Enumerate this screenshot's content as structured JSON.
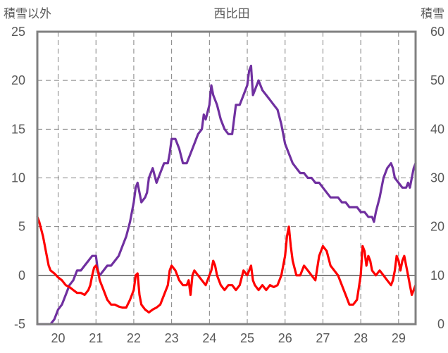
{
  "chart_data": {
    "type": "line",
    "title": "西比田",
    "left_axis_label": "積雪以外",
    "right_axis_label": "積雪",
    "x_range": [
      19.45,
      29.45
    ],
    "x_ticks": [
      20,
      21,
      22,
      23,
      24,
      25,
      26,
      27,
      28,
      29
    ],
    "left_ylim": [
      -5,
      25
    ],
    "left_ticks": [
      -5,
      0,
      5,
      10,
      15,
      20,
      25
    ],
    "right_ylim": [
      0,
      60
    ],
    "right_ticks": [
      0,
      10,
      20,
      30,
      40,
      50,
      60
    ],
    "grid": true,
    "colors": {
      "snow_depth": "#7030a0",
      "temperature": "#ff0000",
      "frame": "#808080",
      "zero_line": "#595959"
    },
    "series": [
      {
        "axis": "right",
        "color": "#7030a0",
        "points": [
          [
            19.45,
            0
          ],
          [
            19.8,
            0
          ],
          [
            19.9,
            1
          ],
          [
            20.0,
            3
          ],
          [
            20.1,
            4
          ],
          [
            20.2,
            6
          ],
          [
            20.3,
            8
          ],
          [
            20.4,
            9
          ],
          [
            20.5,
            11
          ],
          [
            20.6,
            11
          ],
          [
            20.7,
            12
          ],
          [
            20.8,
            13
          ],
          [
            20.9,
            14
          ],
          [
            21.0,
            14
          ],
          [
            21.05,
            11
          ],
          [
            21.1,
            10
          ],
          [
            21.2,
            11
          ],
          [
            21.3,
            12
          ],
          [
            21.4,
            12
          ],
          [
            21.5,
            13
          ],
          [
            21.6,
            14
          ],
          [
            21.7,
            16
          ],
          [
            21.8,
            18
          ],
          [
            21.9,
            21
          ],
          [
            22.0,
            25
          ],
          [
            22.05,
            28
          ],
          [
            22.1,
            29
          ],
          [
            22.15,
            27
          ],
          [
            22.2,
            25
          ],
          [
            22.3,
            26
          ],
          [
            22.35,
            27
          ],
          [
            22.4,
            30
          ],
          [
            22.5,
            32
          ],
          [
            22.6,
            29
          ],
          [
            22.7,
            31
          ],
          [
            22.8,
            33
          ],
          [
            22.9,
            33
          ],
          [
            22.95,
            35
          ],
          [
            23.0,
            38
          ],
          [
            23.1,
            38
          ],
          [
            23.2,
            36
          ],
          [
            23.3,
            33
          ],
          [
            23.4,
            33
          ],
          [
            23.5,
            35
          ],
          [
            23.6,
            37
          ],
          [
            23.7,
            39
          ],
          [
            23.8,
            40
          ],
          [
            23.85,
            43
          ],
          [
            23.9,
            42
          ],
          [
            24.0,
            45
          ],
          [
            24.05,
            49
          ],
          [
            24.1,
            47
          ],
          [
            24.2,
            45
          ],
          [
            24.3,
            42
          ],
          [
            24.4,
            40
          ],
          [
            24.5,
            39
          ],
          [
            24.6,
            39
          ],
          [
            24.7,
            45
          ],
          [
            24.8,
            45
          ],
          [
            24.9,
            47
          ],
          [
            25.0,
            49
          ],
          [
            25.05,
            52
          ],
          [
            25.1,
            53
          ],
          [
            25.15,
            47
          ],
          [
            25.2,
            48
          ],
          [
            25.3,
            50
          ],
          [
            25.4,
            48
          ],
          [
            25.5,
            47
          ],
          [
            25.6,
            46
          ],
          [
            25.7,
            45
          ],
          [
            25.8,
            44
          ],
          [
            25.9,
            41
          ],
          [
            26.0,
            37
          ],
          [
            26.1,
            35
          ],
          [
            26.2,
            33
          ],
          [
            26.3,
            32
          ],
          [
            26.4,
            31
          ],
          [
            26.5,
            31
          ],
          [
            26.6,
            30
          ],
          [
            26.7,
            30
          ],
          [
            26.8,
            29
          ],
          [
            26.9,
            29
          ],
          [
            27.0,
            28
          ],
          [
            27.1,
            27
          ],
          [
            27.2,
            26
          ],
          [
            27.3,
            26
          ],
          [
            27.4,
            26
          ],
          [
            27.5,
            25
          ],
          [
            27.6,
            25
          ],
          [
            27.7,
            24
          ],
          [
            27.8,
            24
          ],
          [
            27.9,
            24
          ],
          [
            28.0,
            23
          ],
          [
            28.1,
            23
          ],
          [
            28.2,
            22
          ],
          [
            28.3,
            22
          ],
          [
            28.35,
            21
          ],
          [
            28.4,
            23
          ],
          [
            28.5,
            26
          ],
          [
            28.6,
            30
          ],
          [
            28.7,
            32
          ],
          [
            28.8,
            33
          ],
          [
            28.85,
            32
          ],
          [
            28.9,
            30
          ],
          [
            29.0,
            29
          ],
          [
            29.1,
            28
          ],
          [
            29.2,
            28
          ],
          [
            29.25,
            29
          ],
          [
            29.3,
            28
          ],
          [
            29.35,
            30
          ],
          [
            29.4,
            32
          ],
          [
            29.45,
            33
          ]
        ]
      },
      {
        "axis": "left",
        "color": "#ff0000",
        "points": [
          [
            19.45,
            6
          ],
          [
            19.5,
            5.5
          ],
          [
            19.6,
            4
          ],
          [
            19.7,
            2
          ],
          [
            19.75,
            1
          ],
          [
            19.8,
            0.5
          ],
          [
            19.9,
            0.2
          ],
          [
            20.0,
            -0.2
          ],
          [
            20.1,
            -0.5
          ],
          [
            20.2,
            -1
          ],
          [
            20.3,
            -1.2
          ],
          [
            20.4,
            -1.5
          ],
          [
            20.5,
            -1.8
          ],
          [
            20.6,
            -1.8
          ],
          [
            20.7,
            -2
          ],
          [
            20.8,
            -1.5
          ],
          [
            20.85,
            -1
          ],
          [
            20.9,
            0
          ],
          [
            20.95,
            0.8
          ],
          [
            21.0,
            1
          ],
          [
            21.05,
            0.5
          ],
          [
            21.1,
            -0.5
          ],
          [
            21.2,
            -1.5
          ],
          [
            21.3,
            -2.5
          ],
          [
            21.4,
            -3
          ],
          [
            21.5,
            -3
          ],
          [
            21.6,
            -3.2
          ],
          [
            21.7,
            -3.3
          ],
          [
            21.8,
            -3.3
          ],
          [
            21.9,
            -2.5
          ],
          [
            22.0,
            -1.5
          ],
          [
            22.05,
            0
          ],
          [
            22.1,
            0.2
          ],
          [
            22.15,
            -2
          ],
          [
            22.2,
            -3
          ],
          [
            22.3,
            -3.5
          ],
          [
            22.4,
            -3.8
          ],
          [
            22.5,
            -3.5
          ],
          [
            22.6,
            -3.3
          ],
          [
            22.7,
            -3
          ],
          [
            22.8,
            -2
          ],
          [
            22.9,
            -1
          ],
          [
            22.95,
            0.5
          ],
          [
            23.0,
            1
          ],
          [
            23.1,
            0.5
          ],
          [
            23.2,
            -0.5
          ],
          [
            23.3,
            -1
          ],
          [
            23.4,
            -1
          ],
          [
            23.45,
            -0.5
          ],
          [
            23.5,
            -2
          ],
          [
            23.55,
            0
          ],
          [
            23.6,
            0.5
          ],
          [
            23.7,
            0
          ],
          [
            23.8,
            -0.5
          ],
          [
            23.9,
            -1
          ],
          [
            24.0,
            0
          ],
          [
            24.05,
            0.5
          ],
          [
            24.1,
            1.5
          ],
          [
            24.15,
            1
          ],
          [
            24.2,
            0
          ],
          [
            24.3,
            -1
          ],
          [
            24.4,
            -1.5
          ],
          [
            24.5,
            -1
          ],
          [
            24.6,
            -1
          ],
          [
            24.7,
            -1.5
          ],
          [
            24.8,
            -1
          ],
          [
            24.9,
            0.5
          ],
          [
            25.0,
            0
          ],
          [
            25.05,
            0.5
          ],
          [
            25.1,
            1
          ],
          [
            25.15,
            -0.5
          ],
          [
            25.2,
            -1
          ],
          [
            25.3,
            -1.5
          ],
          [
            25.4,
            -1
          ],
          [
            25.5,
            -1.5
          ],
          [
            25.6,
            -1
          ],
          [
            25.7,
            -1.2
          ],
          [
            25.8,
            -1
          ],
          [
            25.9,
            0
          ],
          [
            26.0,
            2
          ],
          [
            26.05,
            4
          ],
          [
            26.1,
            5
          ],
          [
            26.15,
            3
          ],
          [
            26.2,
            1.5
          ],
          [
            26.3,
            0
          ],
          [
            26.4,
            0
          ],
          [
            26.5,
            1
          ],
          [
            26.6,
            0.5
          ],
          [
            26.7,
            0
          ],
          [
            26.8,
            -0.5
          ],
          [
            26.9,
            2
          ],
          [
            27.0,
            3
          ],
          [
            27.1,
            2.5
          ],
          [
            27.2,
            1
          ],
          [
            27.3,
            0.5
          ],
          [
            27.4,
            0
          ],
          [
            27.5,
            -1
          ],
          [
            27.6,
            -2
          ],
          [
            27.7,
            -3
          ],
          [
            27.8,
            -3
          ],
          [
            27.9,
            -2.5
          ],
          [
            28.0,
            0
          ],
          [
            28.05,
            3
          ],
          [
            28.1,
            2.5
          ],
          [
            28.15,
            1
          ],
          [
            28.2,
            2
          ],
          [
            28.25,
            1.5
          ],
          [
            28.3,
            0.5
          ],
          [
            28.4,
            0
          ],
          [
            28.5,
            0.5
          ],
          [
            28.6,
            0
          ],
          [
            28.7,
            -0.5
          ],
          [
            28.8,
            -1
          ],
          [
            28.85,
            -0.5
          ],
          [
            28.9,
            0.5
          ],
          [
            28.95,
            2
          ],
          [
            29.0,
            1.5
          ],
          [
            29.05,
            0.5
          ],
          [
            29.1,
            1.5
          ],
          [
            29.15,
            2
          ],
          [
            29.2,
            1
          ],
          [
            29.25,
            0
          ],
          [
            29.3,
            -1
          ],
          [
            29.35,
            -2
          ],
          [
            29.4,
            -1.5
          ],
          [
            29.45,
            -1
          ]
        ]
      }
    ]
  }
}
